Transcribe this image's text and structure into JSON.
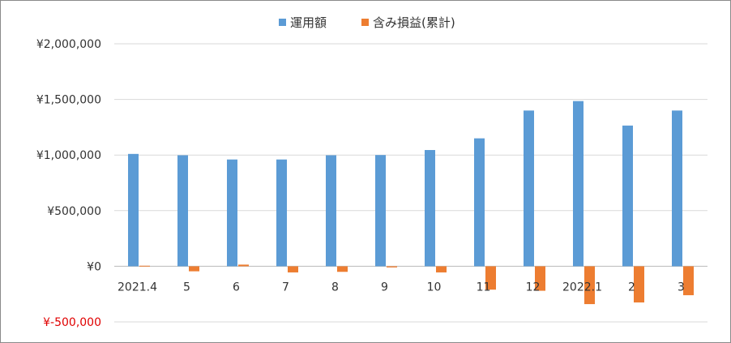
{
  "chart_data": {
    "type": "bar",
    "categories": [
      "2021.4",
      "5",
      "6",
      "7",
      "8",
      "9",
      "10",
      "11",
      "12",
      "2022.1",
      "2",
      "3"
    ],
    "series": [
      {
        "name": "運用額",
        "color": "#5b9bd5",
        "values": [
          1010000,
          998000,
          960000,
          960000,
          998000,
          1000000,
          1045000,
          1150000,
          1400000,
          1485000,
          1265000,
          1400000
        ]
      },
      {
        "name": "含み損益(累計)",
        "color": "#ed7d31",
        "values": [
          5000,
          -45000,
          15000,
          -55000,
          -50000,
          -10000,
          -55000,
          -210000,
          -220000,
          -340000,
          -325000,
          -260000
        ]
      }
    ],
    "ylim": [
      -500000,
      2000000
    ],
    "yticks": [
      {
        "value": 2000000,
        "label": "¥2,000,000",
        "color": "#333333"
      },
      {
        "value": 1500000,
        "label": "¥1,500,000",
        "color": "#333333"
      },
      {
        "value": 1000000,
        "label": "¥1,000,000",
        "color": "#333333"
      },
      {
        "value": 500000,
        "label": "¥500,000",
        "color": "#333333"
      },
      {
        "value": 0,
        "label": "¥0",
        "color": "#333333"
      },
      {
        "value": -500000,
        "label": "¥-500,000",
        "color": "#e00000"
      }
    ],
    "legend_position": "top-center",
    "grid": true,
    "gridline_color": "#d9d9d9"
  }
}
